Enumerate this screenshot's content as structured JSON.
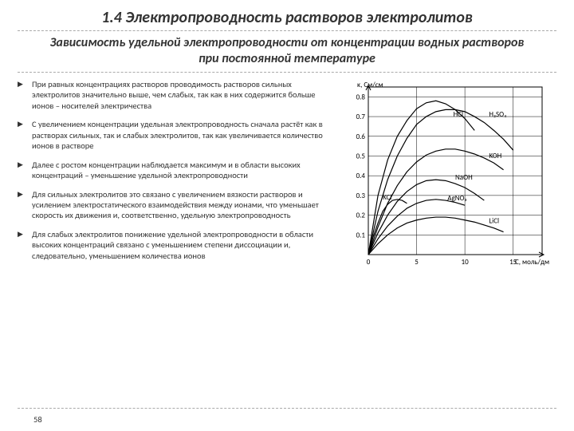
{
  "title": "1.4 Электропроводность растворов электролитов",
  "subtitle": "Зависимость удельной электропроводности от концентрации водных растворов при постоянной температуре",
  "bullets": [
    "При равных концентрациях растворов проводимость растворов сильных электролитов значительно выше, чем слабых, так как в них содержится больше ионов – носителей электричества",
    "С увеличением концентрации удельная электропроводность сначала растёт как в растворах сильных, так и слабых электролитов, так как увеличивается количество ионов в растворе",
    " Далее с ростом концентрации наблюдается максимум и в области высоких концентраций – уменьшение удельной электропроводности",
    "Для сильных электролитов это связано с увеличением вязкости растворов и усилением электростатического взаимодействия между ионами, что уменьшает скорость их движения и, соответственно, удельную электропроводность",
    "Для слабых электролитов понижение удельной электропроводности в области высоких концентраций связано с уменьшением степени диссоциации и, следовательно, уменьшением количества ионов"
  ],
  "pagenum": "58",
  "chart": {
    "type": "line",
    "xlabel": "C, моль/дм",
    "ylabel": "κ, См/см",
    "xlim": [
      0,
      18
    ],
    "ylim": [
      0,
      0.85
    ],
    "xticks": [
      0,
      5,
      10,
      15
    ],
    "yticks": [
      0.1,
      0.2,
      0.3,
      0.4,
      0.5,
      0.6,
      0.7,
      0.8
    ],
    "background_color": "#ffffff",
    "grid_color": "#000000",
    "axis_color": "#000000",
    "line_color": "#000000",
    "line_width": 1.2,
    "label_fontsize": 9,
    "series": [
      {
        "label": "HCl",
        "label_pos": [
          8.8,
          0.7
        ],
        "points": [
          [
            0,
            0
          ],
          [
            1,
            0.3
          ],
          [
            2,
            0.48
          ],
          [
            3,
            0.6
          ],
          [
            4,
            0.68
          ],
          [
            5,
            0.74
          ],
          [
            6,
            0.77
          ],
          [
            7,
            0.78
          ],
          [
            8,
            0.765
          ],
          [
            9,
            0.735
          ],
          [
            10,
            0.69
          ],
          [
            11,
            0.63
          ]
        ]
      },
      {
        "label": "H₂SO₄",
        "label_pos": [
          12.5,
          0.7
        ],
        "points": [
          [
            0,
            0
          ],
          [
            1,
            0.22
          ],
          [
            2,
            0.38
          ],
          [
            3,
            0.5
          ],
          [
            4,
            0.59
          ],
          [
            5,
            0.66
          ],
          [
            6,
            0.7
          ],
          [
            7,
            0.725
          ],
          [
            8,
            0.735
          ],
          [
            9,
            0.735
          ],
          [
            10,
            0.725
          ],
          [
            11,
            0.7
          ],
          [
            12,
            0.67
          ],
          [
            13,
            0.63
          ],
          [
            14,
            0.585
          ],
          [
            15,
            0.53
          ]
        ]
      },
      {
        "label": "KOH",
        "label_pos": [
          12.5,
          0.49
        ],
        "points": [
          [
            0,
            0
          ],
          [
            1,
            0.14
          ],
          [
            2,
            0.26
          ],
          [
            3,
            0.35
          ],
          [
            4,
            0.42
          ],
          [
            5,
            0.47
          ],
          [
            6,
            0.505
          ],
          [
            7,
            0.525
          ],
          [
            8,
            0.535
          ],
          [
            9,
            0.535
          ],
          [
            10,
            0.525
          ],
          [
            11,
            0.51
          ],
          [
            12,
            0.49
          ],
          [
            13,
            0.465
          ],
          [
            14,
            0.43
          ]
        ]
      },
      {
        "label": "NaOH",
        "label_pos": [
          9.0,
          0.38
        ],
        "points": [
          [
            0,
            0
          ],
          [
            1,
            0.11
          ],
          [
            2,
            0.2
          ],
          [
            3,
            0.27
          ],
          [
            4,
            0.32
          ],
          [
            5,
            0.355
          ],
          [
            6,
            0.375
          ],
          [
            7,
            0.38
          ],
          [
            8,
            0.375
          ],
          [
            9,
            0.36
          ],
          [
            10,
            0.34
          ],
          [
            11,
            0.31
          ],
          [
            12,
            0.275
          ]
        ]
      },
      {
        "label": "KCl",
        "label_pos": [
          1.5,
          0.28
        ],
        "points": [
          [
            0,
            0
          ],
          [
            0.5,
            0.09
          ],
          [
            1,
            0.16
          ],
          [
            1.5,
            0.22
          ],
          [
            2,
            0.255
          ],
          [
            2.5,
            0.275
          ],
          [
            3,
            0.28
          ],
          [
            3.5,
            0.275
          ],
          [
            4,
            0.26
          ]
        ]
      },
      {
        "label": "AgNO₃",
        "label_pos": [
          8.2,
          0.275
        ],
        "points": [
          [
            0,
            0
          ],
          [
            1,
            0.08
          ],
          [
            2,
            0.145
          ],
          [
            3,
            0.195
          ],
          [
            4,
            0.235
          ],
          [
            5,
            0.26
          ],
          [
            6,
            0.275
          ],
          [
            7,
            0.28
          ],
          [
            8,
            0.275
          ],
          [
            9,
            0.265
          ],
          [
            10,
            0.25
          ]
        ]
      },
      {
        "label": "LiCl",
        "label_pos": [
          12.5,
          0.16
        ],
        "points": [
          [
            0,
            0
          ],
          [
            1,
            0.055
          ],
          [
            2,
            0.1
          ],
          [
            3,
            0.135
          ],
          [
            4,
            0.16
          ],
          [
            5,
            0.175
          ],
          [
            6,
            0.185
          ],
          [
            7,
            0.19
          ],
          [
            8,
            0.19
          ],
          [
            9,
            0.185
          ],
          [
            10,
            0.175
          ],
          [
            11,
            0.165
          ],
          [
            12,
            0.15
          ],
          [
            13,
            0.135
          ],
          [
            14,
            0.115
          ]
        ]
      }
    ]
  }
}
